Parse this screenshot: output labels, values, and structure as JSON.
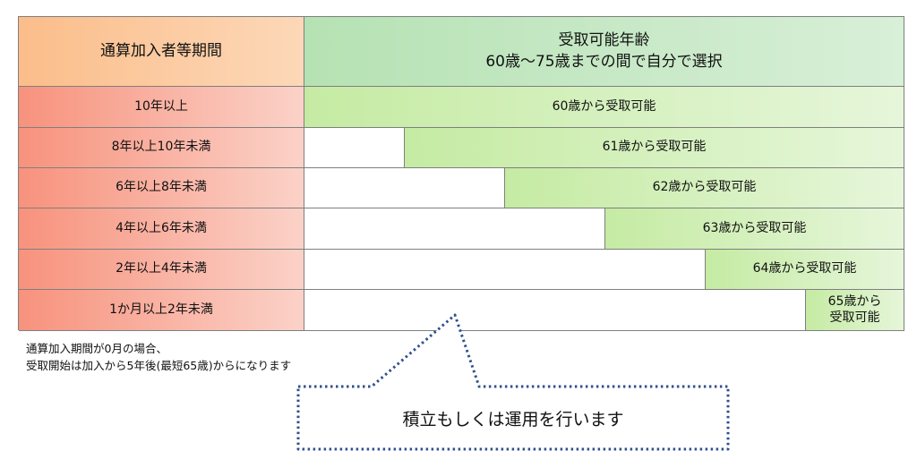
{
  "header": {
    "left": "通算加入者等期間",
    "right_line1": "受取可能年齢",
    "right_line2": "60歳～75歳までの間で自分で選択"
  },
  "rows": [
    {
      "period": "10年以上",
      "label": "60歳から受取可能"
    },
    {
      "period": "8年以上10年未満",
      "label": "61歳から受取可能"
    },
    {
      "period": "6年以上8年未満",
      "label": "62歳から受取可能"
    },
    {
      "period": "4年以上6年未満",
      "label": "63歳から受取可能"
    },
    {
      "period": "2年以上4年未満",
      "label": "64歳から受取可能"
    },
    {
      "period": "1か月以上2年未満",
      "label_line1": "65歳から",
      "label_line2": "受取可能"
    }
  ],
  "note": {
    "line1": "通算加入期間が0月の場合、",
    "line2": "受取開始は加入から5年後(最短65歳)からになります"
  },
  "callout": {
    "text": "積立もしくは運用を行います"
  },
  "colors": {
    "header_left": "#fbbd8a",
    "header_right": "#b5e2b3",
    "row_left": "#f7927d",
    "green_band": "#c5eba3",
    "callout_border": "#2f4f8f"
  }
}
